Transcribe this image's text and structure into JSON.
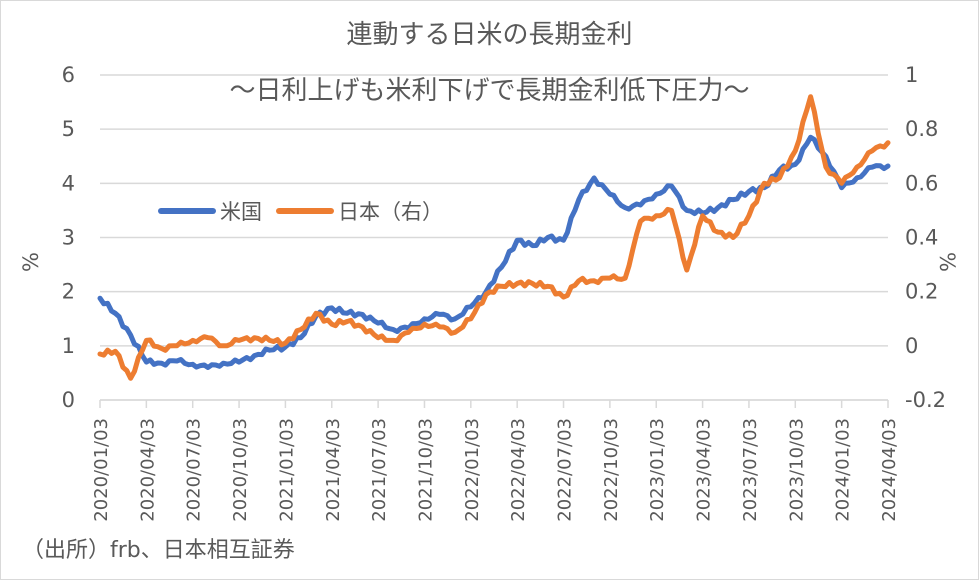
{
  "chart_data": {
    "type": "line",
    "title": "連動する日米の長期金利",
    "subtitle": "～日利上げも米利下げで長期金利低下圧力～",
    "xlabel": "",
    "ylabel": "%",
    "y2label": "%",
    "source": "（出所）frb、日本相互証券",
    "ylim": [
      0,
      6
    ],
    "y2lim": [
      -0.2,
      1
    ],
    "yticks": [
      "0",
      "1",
      "2",
      "3",
      "4",
      "5",
      "6"
    ],
    "y2ticks": [
      "-0.2",
      "0",
      "0.2",
      "0.4",
      "0.6",
      "0.8",
      "1"
    ],
    "grid": true,
    "legend_position": "inside-left",
    "x_tick_labels": [
      "2020/01/03",
      "2020/04/03",
      "2020/07/03",
      "2020/10/03",
      "2021/01/03",
      "2021/04/03",
      "2021/07/03",
      "2021/10/03",
      "2022/01/03",
      "2022/04/03",
      "2022/07/03",
      "2022/10/03",
      "2023/01/03",
      "2023/04/03",
      "2023/07/03",
      "2023/10/03",
      "2024/01/03",
      "2024/04/03"
    ],
    "x": [
      0,
      0.33,
      0.66,
      1,
      1.33,
      1.66,
      2,
      2.33,
      2.66,
      3,
      3.33,
      3.66,
      4,
      4.33,
      4.66,
      5,
      5.33,
      5.66,
      6,
      6.33,
      6.66,
      7,
      7.33,
      7.66,
      8,
      8.33,
      8.66,
      9,
      9.33,
      9.66,
      10,
      10.33,
      10.66,
      11,
      11.33,
      11.66,
      12,
      12.33,
      12.66,
      13,
      13.33,
      13.66,
      14,
      14.33,
      14.66,
      15,
      15.33,
      15.66,
      16,
      16.33,
      16.66,
      17
    ],
    "series": [
      {
        "name": "米国",
        "axis": "left",
        "color": "#4472C4",
        "values": [
          1.88,
          1.6,
          1.2,
          0.7,
          0.68,
          0.72,
          0.66,
          0.6,
          0.68,
          0.7,
          0.82,
          0.92,
          0.98,
          1.15,
          1.55,
          1.7,
          1.6,
          1.58,
          1.42,
          1.3,
          1.33,
          1.5,
          1.58,
          1.5,
          1.72,
          2.0,
          2.45,
          2.95,
          2.85,
          3.0,
          2.95,
          3.7,
          4.1,
          3.8,
          3.55,
          3.6,
          3.8,
          3.95,
          3.5,
          3.45,
          3.55,
          3.7,
          3.85,
          3.92,
          4.25,
          4.35,
          4.85,
          4.5,
          3.92,
          4.1,
          4.3,
          4.32
        ]
      },
      {
        "name": "日本（右）",
        "axis": "right",
        "color": "#ED7D31",
        "values": [
          -0.03,
          -0.02,
          -0.12,
          0.02,
          -0.01,
          0.0,
          0.02,
          0.03,
          0.0,
          0.02,
          0.03,
          0.02,
          0.01,
          0.06,
          0.12,
          0.08,
          0.09,
          0.07,
          0.03,
          0.02,
          0.05,
          0.08,
          0.07,
          0.05,
          0.1,
          0.19,
          0.22,
          0.23,
          0.23,
          0.22,
          0.18,
          0.24,
          0.24,
          0.25,
          0.25,
          0.46,
          0.48,
          0.5,
          0.28,
          0.48,
          0.42,
          0.4,
          0.48,
          0.6,
          0.62,
          0.72,
          0.92,
          0.66,
          0.6,
          0.66,
          0.72,
          0.75
        ]
      }
    ]
  },
  "legend": {
    "us_label": "米国",
    "jp_label": "日本（右）"
  }
}
